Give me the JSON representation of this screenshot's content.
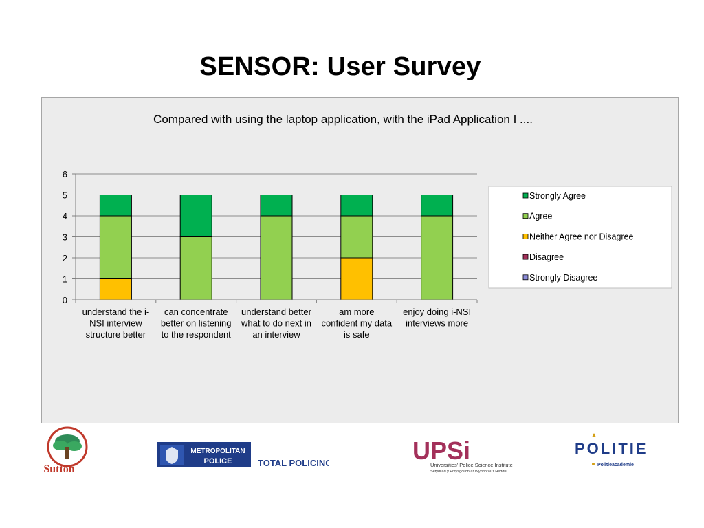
{
  "slide": {
    "title": "SENSOR: User Survey"
  },
  "chart_data": {
    "type": "bar",
    "stacked": true,
    "title": "Compared with using the laptop application, with the iPad Application I ....",
    "xlabel": "",
    "ylabel": "",
    "ylim": [
      0,
      6
    ],
    "yticks": [
      0,
      1,
      2,
      3,
      4,
      5,
      6
    ],
    "grid": true,
    "legend_position": "right",
    "categories": [
      "understand the i-NSI interview structure better",
      "can concentrate better on listening to the respondent",
      "understand better what to do next in an interview",
      "am more confident my data is safe",
      "enjoy doing i-NSI interviews more"
    ],
    "category_lines": [
      [
        "understand the i-",
        "NSI interview",
        "structure better"
      ],
      [
        "can concentrate",
        "better on listening",
        "to the respondent"
      ],
      [
        "understand better",
        "what to do next in",
        "an interview"
      ],
      [
        "am more",
        "confident my data",
        "is safe"
      ],
      [
        "enjoy doing i-NSI",
        "interviews more"
      ]
    ],
    "series": [
      {
        "name": "Strongly Disagree",
        "color": "#8c8cd9",
        "values": [
          0,
          0,
          0,
          0,
          0
        ]
      },
      {
        "name": "Disagree",
        "color": "#a3305a",
        "values": [
          0,
          0,
          0,
          0,
          0
        ]
      },
      {
        "name": "Neither Agree nor Disagree",
        "color": "#ffc000",
        "values": [
          1,
          0,
          0,
          2,
          0
        ]
      },
      {
        "name": "Agree",
        "color": "#92d050",
        "values": [
          3,
          3,
          4,
          2,
          4
        ]
      },
      {
        "name": "Strongly Agree",
        "color": "#00b050",
        "values": [
          1,
          2,
          1,
          1,
          1
        ]
      }
    ],
    "legend_order": [
      "Strongly Agree",
      "Agree",
      "Neither Agree nor Disagree",
      "Disagree",
      "Strongly Disagree"
    ]
  },
  "logos": {
    "sutton": {
      "text": "Sutton"
    },
    "met": {
      "line1": "METROPOLITAN",
      "line2": "POLICE",
      "tagline": "TOTAL POLICING"
    },
    "upsi": {
      "mark": "UPSi",
      "line1": "Universities' Police Science Institute",
      "line2": "Sefydliad y Prifysgolion ar Wyddorau'r Heddlu"
    },
    "politie": {
      "name": "POLITIE",
      "sub": "Politieacademie"
    }
  }
}
